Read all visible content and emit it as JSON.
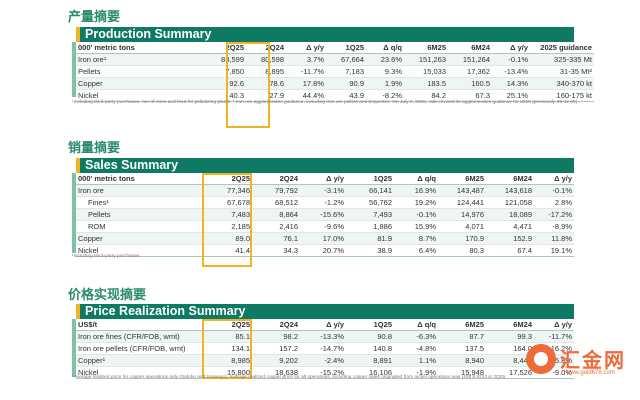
{
  "production": {
    "cn_title": "产量摘要",
    "title": "Production Summary",
    "headers": [
      "000' metric tons",
      "2Q25",
      "2Q24",
      "Δ y/y",
      "1Q25",
      "Δ q/q",
      "6M25",
      "6M24",
      "Δ y/y",
      "2025 guidance"
    ],
    "rows": [
      [
        "Iron ore¹",
        "83,599",
        "80,598",
        "3.7%",
        "67,664",
        "23.6%",
        "151,263",
        "151,264",
        "-0.1%",
        "325-335 Mt"
      ],
      [
        "Pellets",
        "7,850",
        "8,895",
        "-11.7%",
        "7,183",
        "9.3%",
        "15,033",
        "17,362",
        "-13.4%",
        "31-35 Mt²"
      ],
      [
        "Copper",
        "92.6",
        "78.6",
        "17.8%",
        "90.9",
        "1.9%",
        "183.5",
        "160.5",
        "14.3%",
        "340-370 kt"
      ],
      [
        "Nickel",
        "40.3",
        "27.9",
        "44.4%",
        "43.9",
        "-8.2%",
        "84.2",
        "67.3",
        "25.1%",
        "160-175 kt"
      ]
    ],
    "footnote": "¹Including third-party purchases, run-of-mine and feed for pelletizing plants. ² Iron ore agglomerates guidance, including iron ore pellets and briquettes. On July 2, 2025, Vale revised its agglomerates guidance for 2025 (previously 38-42 Mt)."
  },
  "sales": {
    "cn_title": "销量摘要",
    "title": "Sales Summary",
    "headers": [
      "000' metric tons",
      "2Q25",
      "2Q24",
      "Δ y/y",
      "1Q25",
      "Δ q/q",
      "6M25",
      "6M24",
      "Δ y/y"
    ],
    "rows": [
      [
        "Iron ore",
        "77,346",
        "79,792",
        "-3.1%",
        "66,141",
        "16.9%",
        "143,487",
        "143,618",
        "-0.1%"
      ],
      [
        "Fines¹",
        "67,678",
        "68,512",
        "-1.2%",
        "56,762",
        "19.2%",
        "124,441",
        "121,058",
        "2.8%"
      ],
      [
        "Pellets",
        "7,483",
        "8,864",
        "-15.6%",
        "7,493",
        "-0.1%",
        "14,976",
        "18,089",
        "-17.2%"
      ],
      [
        "ROM",
        "2,185",
        "2,416",
        "-9.6%",
        "1,886",
        "15.9%",
        "4,071",
        "4,471",
        "-8.9%"
      ],
      [
        "Copper",
        "89.0",
        "76.1",
        "17.0%",
        "81.9",
        "8.7%",
        "170.9",
        "152.9",
        "11.8%"
      ],
      [
        "Nickel",
        "41.4",
        "34.3",
        "20.7%",
        "38.9",
        "6.4%",
        "80.3",
        "67.4",
        "19.1%"
      ]
    ],
    "footnote": "¹Including third-party purchases."
  },
  "prices": {
    "cn_title": "价格实现摘要",
    "title": "Price Realization Summary",
    "headers": [
      "US$/t",
      "2Q25",
      "2Q24",
      "Δ y/y",
      "1Q25",
      "Δ q/q",
      "6M25",
      "6M24",
      "Δ y/y"
    ],
    "rows": [
      [
        "Iron ore fines (CFR/FOB, wmt)",
        "85.1",
        "98.2",
        "-13.3%",
        "90.8",
        "-6.3%",
        "87.7",
        "99.3",
        "-11.7%"
      ],
      [
        "Iron ore pellets (CFR/FOB, wmt)",
        "134.1",
        "157.2",
        "-14.7%",
        "140.8",
        "-4.8%",
        "137.5",
        "164.0",
        "-16.2%"
      ],
      [
        "Copper¹",
        "8,985",
        "9,202",
        "-2.4%",
        "8,891",
        "1.1%",
        "8,940",
        "8,447",
        "5.8%"
      ],
      [
        "Nickel",
        "15,800",
        "18,638",
        "-15.2%",
        "16,106",
        "-1.9%",
        "15,948",
        "17,526",
        "-9.0%"
      ]
    ],
    "footnote": "¹Average realized price for copper operations only (Salobo and Sossego). Average realized copper price for all operations, including copper sales originated from nickel operations was US$ 8,921/t in 2Q25."
  },
  "watermark": {
    "text": "汇金网",
    "url": "www.gold678.com"
  },
  "colors": {
    "green": "#0e7a63",
    "gold": "#f0b323",
    "title_green": "#2a8a6e"
  }
}
